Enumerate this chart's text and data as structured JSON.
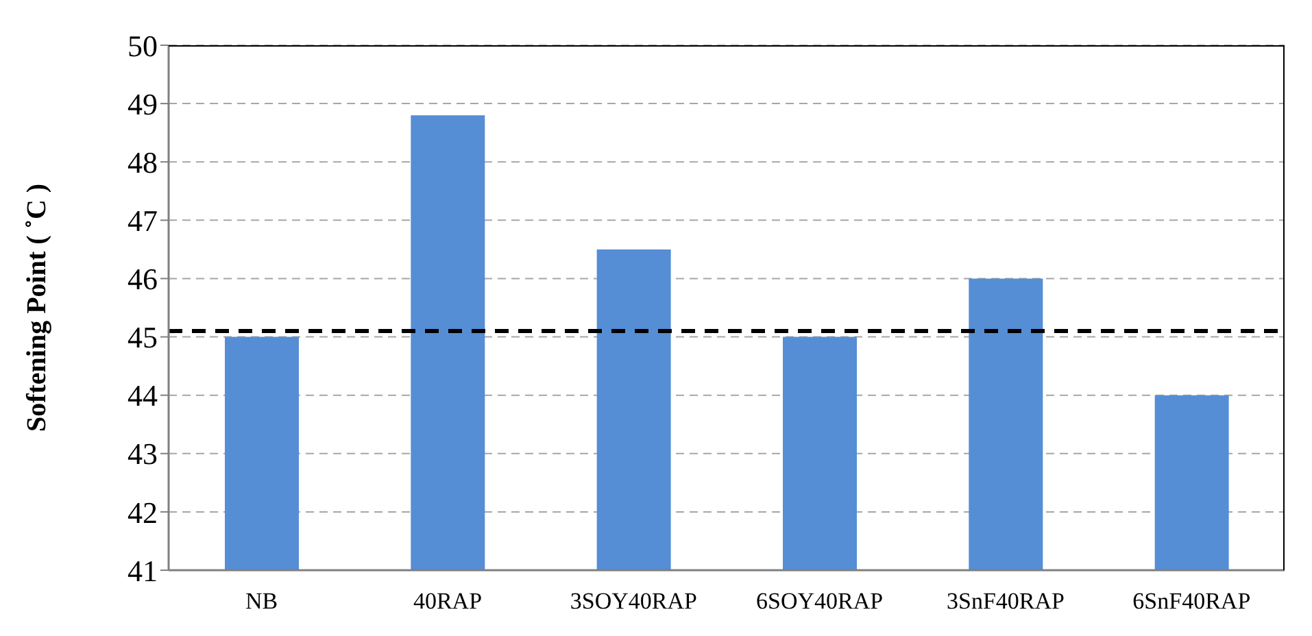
{
  "chart_data": {
    "type": "bar",
    "ylabel": "Softening Point ( ˚C )",
    "categories": [
      "NB",
      "40RAP",
      "3SOY40RAP",
      "6SOY40RAP",
      "3SnF40RAP",
      "6SnF40RAP"
    ],
    "values": [
      45,
      48.8,
      46.5,
      45,
      46,
      44
    ],
    "color": "#558ed5",
    "ylim": [
      41,
      50
    ],
    "yticks": [
      41,
      42,
      43,
      44,
      45,
      46,
      47,
      48,
      49,
      50
    ],
    "grid": "y",
    "ref_lines": [
      {
        "axis": "y",
        "value": 45.1,
        "color": "#000000",
        "line_style": "dashed"
      }
    ]
  }
}
